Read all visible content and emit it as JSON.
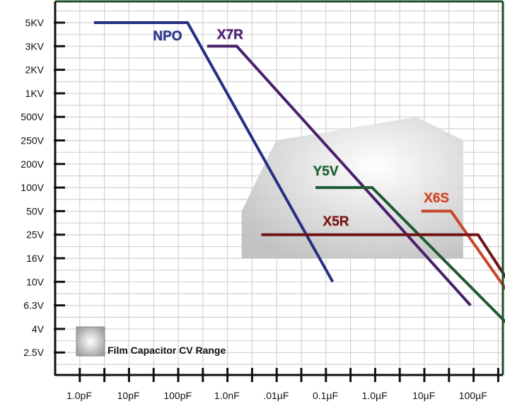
{
  "chart_data": {
    "type": "line",
    "title": "",
    "xlabel": "",
    "ylabel": "",
    "x_categories": [
      "1.0pF",
      "10pF",
      "100pF",
      "1.0nF",
      ".01µF",
      "0.1µF",
      "1.0µF",
      "10µF",
      "100µF"
    ],
    "y_categories": [
      "5KV",
      "3KV",
      "2KV",
      "1KV",
      "500V",
      "250V",
      "200V",
      "100V",
      "50V",
      "25V",
      "16V",
      "10V",
      "6.3V",
      "4V",
      "2.5V"
    ],
    "grid": true,
    "series": [
      {
        "name": "NPO",
        "color": "#262f82",
        "points": [
          [
            0.3,
            "5KV"
          ],
          [
            2.2,
            "5KV"
          ],
          [
            5.15,
            "10V"
          ]
        ]
      },
      {
        "name": "X7R",
        "color": "#4a1f6c",
        "points": [
          [
            2.6,
            "3KV"
          ],
          [
            3.2,
            "3KV"
          ],
          [
            7.95,
            "6.3V"
          ]
        ]
      },
      {
        "name": "Y5V",
        "color": "#1e5a32",
        "points": [
          [
            4.8,
            "100V"
          ],
          [
            5.95,
            "100V"
          ],
          [
            8.8,
            "4V"
          ]
        ]
      },
      {
        "name": "X6S",
        "color": "#c8462a",
        "points": [
          [
            6.95,
            "50V"
          ],
          [
            7.55,
            "50V"
          ],
          [
            8.9,
            "6.3V"
          ]
        ]
      },
      {
        "name": "X5R",
        "color": "#6e1414",
        "points": [
          [
            3.7,
            "25V"
          ],
          [
            8.1,
            "25V"
          ],
          [
            9.35,
            "4V"
          ]
        ]
      }
    ],
    "shaded_region": {
      "label": "Film Capacitor CV Range",
      "points": [
        [
          3.3,
          "16V"
        ],
        [
          3.3,
          "50V"
        ],
        [
          4.0,
          "250V"
        ],
        [
          6.85,
          "500V"
        ],
        [
          7.8,
          "250V"
        ],
        [
          7.8,
          "16V"
        ]
      ]
    }
  }
}
